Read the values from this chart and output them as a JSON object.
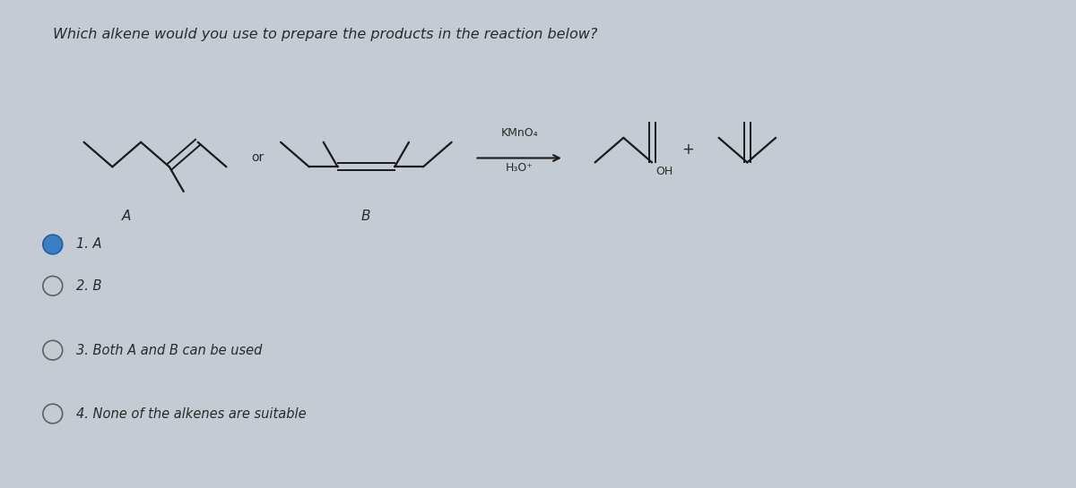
{
  "title": "Which alkene would you use to prepare the products in the reaction below?",
  "bg_color": "#c5cbd3",
  "text_color": "#2a2a2a",
  "options": [
    {
      "number": "1.",
      "text": "A",
      "selected": true
    },
    {
      "number": "2.",
      "text": "B",
      "selected": false
    },
    {
      "number": "3.",
      "text": "Both A and B can be used",
      "selected": false
    },
    {
      "number": "4.",
      "text": "None of the alkenes are suitable",
      "selected": false
    }
  ],
  "reagents_above": "KMnO₄",
  "reagents_below": "H₃O⁺",
  "label_A": "A",
  "label_B": "B",
  "or_text": "or",
  "plus_text": "+",
  "OH_text": "OH"
}
